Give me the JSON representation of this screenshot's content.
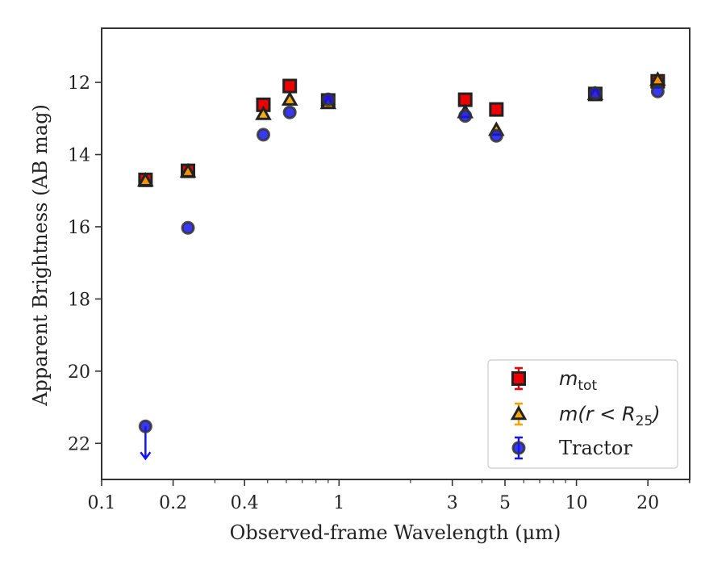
{
  "chart_data": {
    "type": "scatter",
    "title": "",
    "xlabel": "Observed-frame Wavelength (μm)",
    "ylabel": "Apparent Brightness (AB mag)",
    "xscale": "log",
    "xlim": [
      0.1,
      30
    ],
    "ylim": [
      23.0,
      10.5
    ],
    "y_inverted": true,
    "grid": false,
    "legend_position": "lower-right",
    "x_ticks": [
      {
        "value": 0.1,
        "label": "0.1"
      },
      {
        "value": 0.2,
        "label": "0.2"
      },
      {
        "value": 0.4,
        "label": "0.4"
      },
      {
        "value": 1,
        "label": "1"
      },
      {
        "value": 3,
        "label": "3"
      },
      {
        "value": 5,
        "label": "5"
      },
      {
        "value": 10,
        "label": "10"
      },
      {
        "value": 20,
        "label": "20"
      }
    ],
    "y_ticks": [
      {
        "value": 12,
        "label": "12"
      },
      {
        "value": 14,
        "label": "14"
      },
      {
        "value": 16,
        "label": "16"
      },
      {
        "value": 18,
        "label": "18"
      },
      {
        "value": 20,
        "label": "20"
      },
      {
        "value": 22,
        "label": "22"
      }
    ],
    "series": [
      {
        "name": "m_tot",
        "legend_main": "m",
        "legend_sub": "tot",
        "marker": "square",
        "color": "#ee0000",
        "edge_color": "#222222",
        "points": [
          {
            "x": 0.153,
            "y": 14.7
          },
          {
            "x": 0.231,
            "y": 14.45
          },
          {
            "x": 0.48,
            "y": 12.62
          },
          {
            "x": 0.62,
            "y": 12.1
          },
          {
            "x": 0.9,
            "y": 12.5
          },
          {
            "x": 3.4,
            "y": 12.48
          },
          {
            "x": 4.6,
            "y": 12.75
          },
          {
            "x": 12.0,
            "y": 12.32
          },
          {
            "x": 22.0,
            "y": 11.97
          }
        ]
      },
      {
        "name": "m(r < R_25)",
        "legend_main": "m(r < R",
        "legend_sub": "25",
        "legend_tail": ")",
        "marker": "triangle",
        "color": "#f5a300",
        "edge_color": "#222222",
        "points": [
          {
            "x": 0.153,
            "y": 14.72
          },
          {
            "x": 0.231,
            "y": 14.47
          },
          {
            "x": 0.48,
            "y": 12.88
          },
          {
            "x": 0.62,
            "y": 12.48
          },
          {
            "x": 0.9,
            "y": 12.58
          },
          {
            "x": 3.4,
            "y": 12.83
          },
          {
            "x": 4.6,
            "y": 13.32
          },
          {
            "x": 12.0,
            "y": 12.33
          },
          {
            "x": 22.0,
            "y": 11.93
          }
        ]
      },
      {
        "name": "Tractor",
        "legend_main": "Tractor",
        "marker": "circle",
        "color": "#1515ee",
        "edge_color": "#333333",
        "points": [
          {
            "x": 0.153,
            "y": 21.53,
            "upper_limit": true
          },
          {
            "x": 0.231,
            "y": 16.03
          },
          {
            "x": 0.48,
            "y": 13.45
          },
          {
            "x": 0.62,
            "y": 12.83
          },
          {
            "x": 0.9,
            "y": 12.47
          },
          {
            "x": 3.4,
            "y": 12.93
          },
          {
            "x": 4.6,
            "y": 13.48
          },
          {
            "x": 12.0,
            "y": 12.3
          },
          {
            "x": 22.0,
            "y": 12.25
          }
        ]
      }
    ]
  }
}
